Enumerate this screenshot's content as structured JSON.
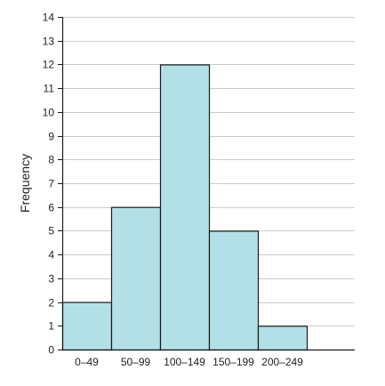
{
  "chart_data": {
    "type": "bar",
    "histogram": true,
    "categories": [
      "0–49",
      "50–99",
      "100–149",
      "150–199",
      "200–249"
    ],
    "values": [
      2,
      6,
      12,
      5,
      1
    ],
    "title": "",
    "xlabel": "",
    "ylabel": "Frequency",
    "ylim": [
      0,
      14
    ],
    "yticks": [
      0,
      1,
      2,
      3,
      4,
      5,
      6,
      7,
      8,
      9,
      10,
      11,
      12,
      13,
      14
    ],
    "grid": true,
    "bar_color": "#b3e0e6",
    "bar_edge_color": "#1a1a1a",
    "grid_color": "#cccccc"
  }
}
